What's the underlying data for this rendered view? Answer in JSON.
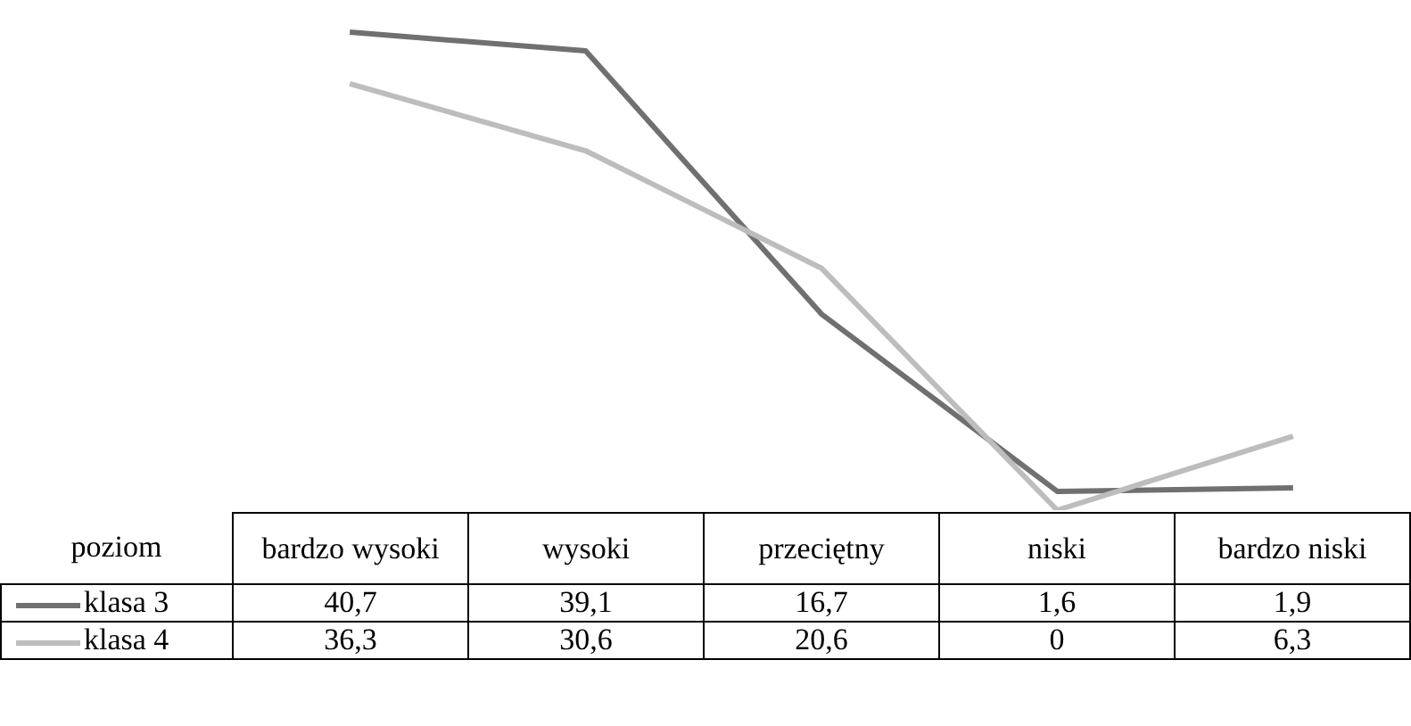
{
  "chart_data": {
    "type": "line",
    "xlabel": "poziom",
    "categories": [
      "bardzo wysoki",
      "wysoki",
      "przeciętny",
      "niski",
      "bardzo niski"
    ],
    "series": [
      {
        "name": "klasa 3",
        "color": "#707070",
        "values": [
          40.7,
          39.1,
          16.7,
          1.6,
          1.9
        ],
        "value_labels": [
          "40,7",
          "39,1",
          "16,7",
          "1,6",
          "1,9"
        ]
      },
      {
        "name": "klasa 4",
        "color": "#bdbdbd",
        "values": [
          36.3,
          30.6,
          20.6,
          0,
          6.3
        ],
        "value_labels": [
          "36,3",
          "30,6",
          "20,6",
          "0",
          "6,3"
        ]
      }
    ],
    "legend": "bottom",
    "marker": "none"
  }
}
